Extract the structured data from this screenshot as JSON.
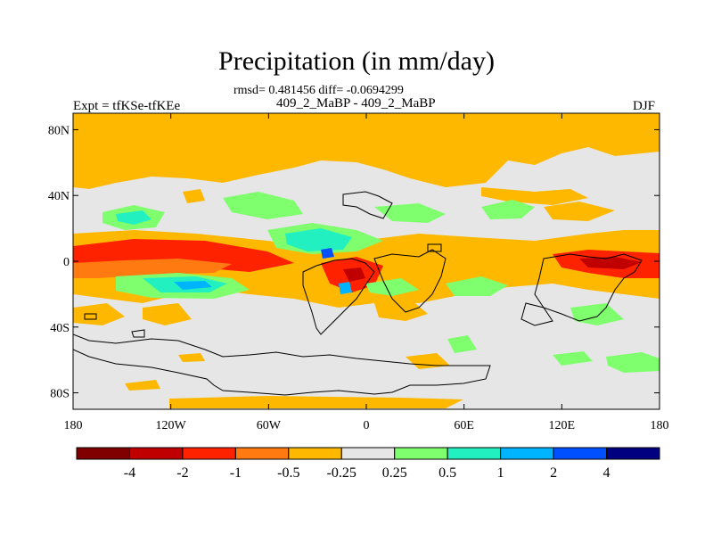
{
  "title": "Precipitation (in mm/day)",
  "stats_line": "rmsd= 0.481456  diff= -0.0694299",
  "left_label": "Expt = tfKSe-tfKEe",
  "center_label": "409_2_MaBP - 409_2_MaBP",
  "right_label": "DJF",
  "y_axis": {
    "ticks": [
      {
        "value": 80,
        "label": "80N"
      },
      {
        "value": 40,
        "label": "40N"
      },
      {
        "value": 0,
        "label": "0"
      },
      {
        "value": -40,
        "label": "40S"
      },
      {
        "value": -80,
        "label": "80S"
      }
    ]
  },
  "x_axis": {
    "ticks": [
      {
        "value": -180,
        "label": "180"
      },
      {
        "value": -120,
        "label": "120W"
      },
      {
        "value": -60,
        "label": "60W"
      },
      {
        "value": 0,
        "label": "0"
      },
      {
        "value": 60,
        "label": "60E"
      },
      {
        "value": 120,
        "label": "120E"
      },
      {
        "value": 180,
        "label": "180"
      }
    ]
  },
  "colorbar": {
    "colors": [
      "#800000",
      "#c00000",
      "#ff2200",
      "#ff7a10",
      "#ffb800",
      "#e6e6e6",
      "#7fff6e",
      "#22f0c0",
      "#00b4ff",
      "#0050ff",
      "#000080"
    ],
    "labels": [
      "-4",
      "-2",
      "-1",
      "-0.5",
      "-0.25",
      "0.25",
      "0.5",
      "1",
      "2",
      "4"
    ]
  },
  "colors": {
    "background_field": "#e6e6e6",
    "dry_orange": "#ffb800",
    "orange": "#ff7a10",
    "red": "#ff2200",
    "wet_green": "#7fff6e",
    "teal": "#22f0c0",
    "light_blue": "#00b4ff",
    "blue": "#0050ff"
  }
}
